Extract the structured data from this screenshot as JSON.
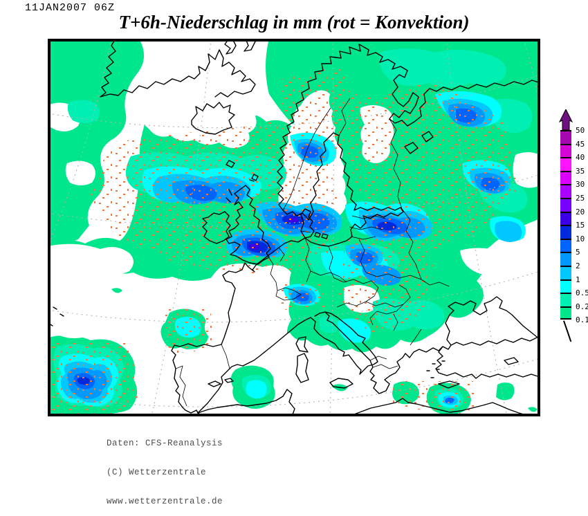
{
  "header": {
    "datetime": "11JAN2007 06Z",
    "title": "T+6h-Niederschlag in mm (rot = Konvektion)"
  },
  "legend": {
    "values": [
      "50",
      "45",
      "40",
      "35",
      "30",
      "25",
      "20",
      "15",
      "10",
      "5",
      "2",
      "1",
      "0.5",
      "0.2",
      "0.1"
    ],
    "segment_colors": [
      "#A808B0",
      "#D505D5",
      "#FF14FF",
      "#DC00FF",
      "#AA00FF",
      "#7800FF",
      "#3C00E6",
      "#0028DC",
      "#0064FF",
      "#0099FF",
      "#00C8FF",
      "#00FFFF",
      "#00F0B4",
      "#00E68C"
    ],
    "arrow_color": "#700F80",
    "unit": "mm"
  },
  "map": {
    "level_colors": [
      "#00E68C",
      "#00F0B4",
      "#00FFFF",
      "#00C8FF",
      "#0099FF",
      "#0064FF",
      "#0028DC",
      "#3C00E6"
    ],
    "convection_color": "#F0783C",
    "coast_color": "#000000",
    "graticule_color": "#B2B2B2",
    "background_color": "#FFFFFF"
  },
  "footer": {
    "lines": [
      "Daten: CFS-Reanalysis",
      "(C) Wetterzentrale",
      "www.wetterzentrale.de"
    ]
  }
}
